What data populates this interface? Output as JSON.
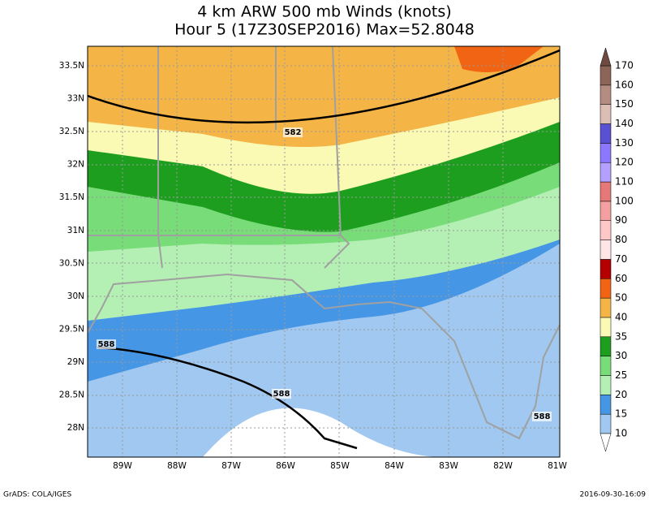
{
  "header": {
    "title": "4 km ARW 500 mb Winds (knots)",
    "subtitle": "Hour 5 (17Z30SEP2016) Max=52.8048"
  },
  "map": {
    "lat_labels": [
      "33.5N",
      "33N",
      "32.5N",
      "32N",
      "31.5N",
      "31N",
      "30.5N",
      "30N",
      "29.5N",
      "29N",
      "28.5N",
      "28N"
    ],
    "lon_labels": [
      "89W",
      "88W",
      "87W",
      "86W",
      "85W",
      "84W",
      "83W",
      "82W",
      "81W"
    ],
    "contour_labels": [
      "582",
      "588",
      "588",
      "588"
    ]
  },
  "colorbar": {
    "labels": [
      10,
      15,
      20,
      25,
      30,
      35,
      40,
      50,
      60,
      70,
      80,
      90,
      100,
      110,
      120,
      130,
      140,
      150,
      160,
      170
    ],
    "colors": [
      "#a0c8f0",
      "#4696e6",
      "#b4f0b4",
      "#78dc78",
      "#1e9e1e",
      "#fafab4",
      "#f5b446",
      "#f06414",
      "#b40000",
      "#ffe6e6",
      "#ffc8c8",
      "#f5a0a0",
      "#e67878",
      "#b4a0ff",
      "#8c78ff",
      "#5a50d2",
      "#dcbeb4",
      "#b48c82",
      "#8c6458"
    ],
    "under_color": "#ffffff",
    "over_color": "#6e4a40"
  },
  "footer": {
    "left": "GrADS: COLA/IGES",
    "right": "2016-09-30-16:09"
  }
}
